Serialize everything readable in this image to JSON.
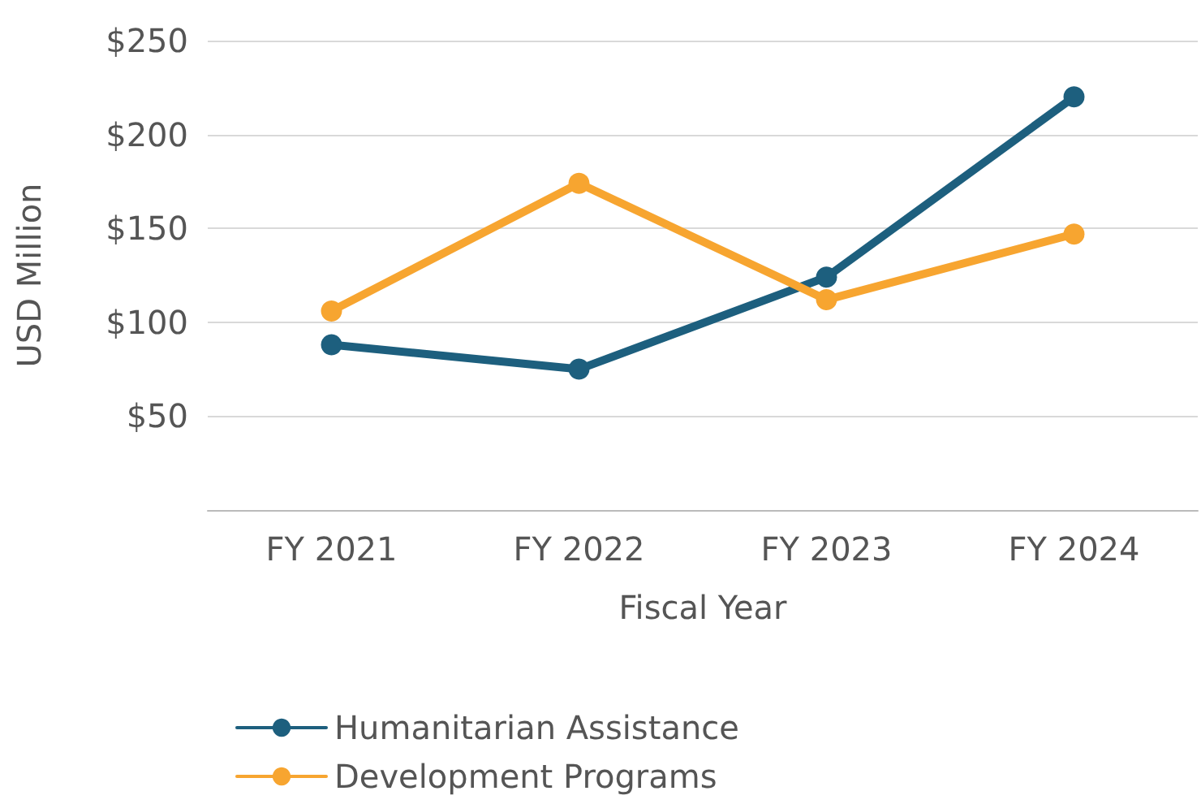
{
  "chart_data": {
    "type": "line",
    "xlabel": "Fiscal Year",
    "ylabel": "USD Million",
    "categories": [
      "FY 2021",
      "FY 2022",
      "FY 2023",
      "FY 2024"
    ],
    "series": [
      {
        "name": "Humanitarian Assistance",
        "color": "#1d5f7e",
        "values": [
          88,
          75,
          124,
          220
        ]
      },
      {
        "name": "Development Programs",
        "color": "#f7a530",
        "values": [
          106,
          174,
          112,
          147
        ]
      }
    ],
    "ylim": [
      0,
      250
    ],
    "yticks": [
      {
        "value": 0,
        "label": null
      },
      {
        "value": 50,
        "label": "$50"
      },
      {
        "value": 100,
        "label": "$100"
      },
      {
        "value": 150,
        "label": "$150"
      },
      {
        "value": 200,
        "label": "$200"
      },
      {
        "value": 250,
        "label": "$250"
      }
    ],
    "grid": "y",
    "legend": "bottom left",
    "marker": "circle",
    "line_style": "solid"
  }
}
